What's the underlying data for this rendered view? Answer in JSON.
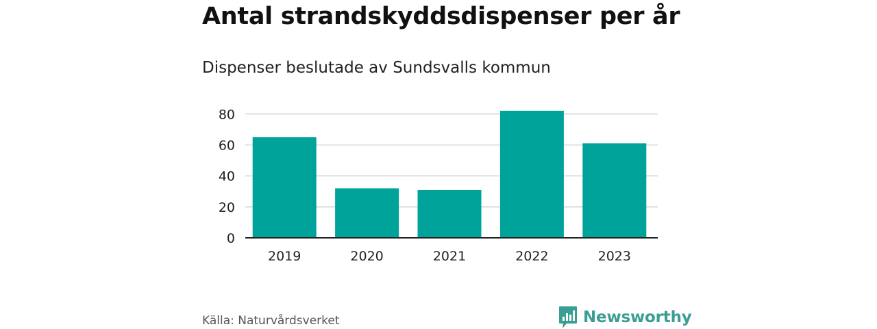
{
  "title": "Antal strandskyddsdispenser per år",
  "subtitle": "Dispenser beslutade av Sundsvalls kommun",
  "source": "Källa: Naturvårdsverket",
  "brand": {
    "name": "Newsworthy",
    "icon": "bar-chart-speech-icon"
  },
  "colors": {
    "bar": "#00a39a",
    "grid": "#d6d6d6",
    "axis": "#222222",
    "brand": "#3a9e94"
  },
  "chart_data": {
    "type": "bar",
    "title": "Antal strandskyddsdispenser per år",
    "subtitle": "Dispenser beslutade av Sundsvalls kommun",
    "xlabel": "",
    "ylabel": "",
    "categories": [
      "2019",
      "2020",
      "2021",
      "2022",
      "2023"
    ],
    "values": [
      65,
      32,
      31,
      82,
      61
    ],
    "ylim": [
      0,
      85
    ],
    "yticks": [
      0,
      20,
      40,
      60,
      80
    ],
    "grid": true
  }
}
